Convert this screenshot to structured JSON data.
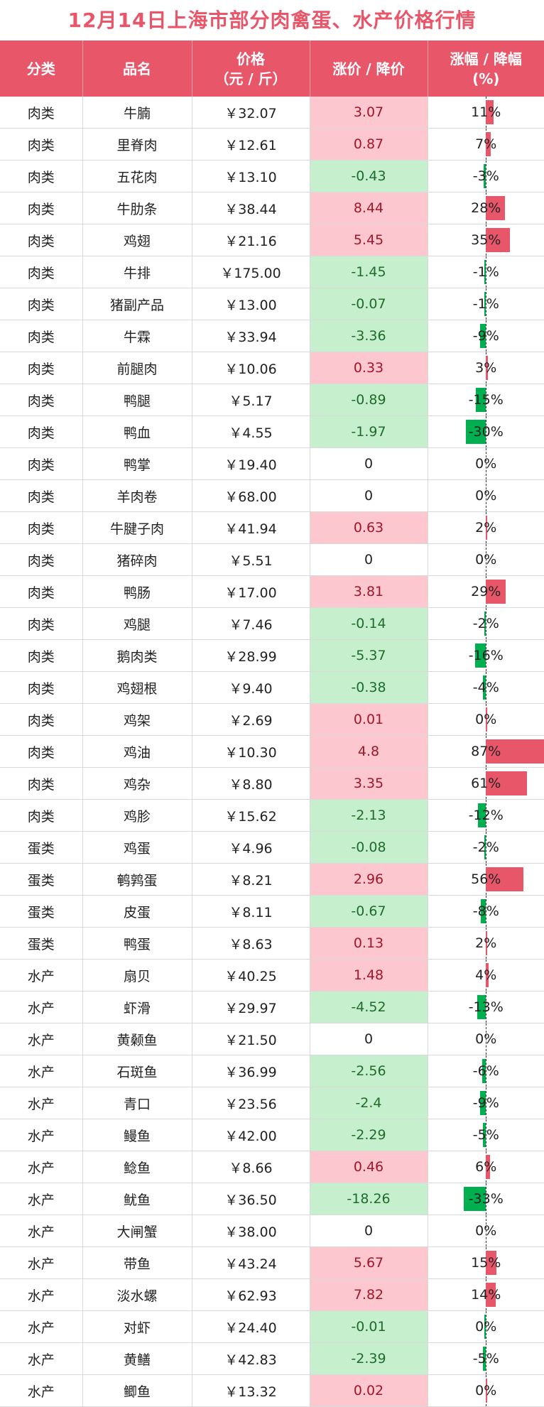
{
  "title": "12月14日上海市部分肉禽蛋、水产价格行情",
  "header": {
    "category": "分类",
    "name": "品名",
    "price_line1": "价格",
    "price_line2": "（元 / 斤）",
    "change": "涨价 / 降价",
    "pct_line1": "涨幅 / 降幅",
    "pct_line2": "(%)"
  },
  "colors": {
    "header_bg": "#e8566a",
    "rise_bg": "#fcc7ce",
    "fall_bg": "#c6efce",
    "rise_bar": "#e8566a",
    "fall_bar": "#00b050"
  },
  "rows": [
    {
      "category": "肉类",
      "name": "牛腩",
      "price": "￥32.07",
      "change": "3.07",
      "pct": "11%",
      "pct_value": 11
    },
    {
      "category": "肉类",
      "name": "里脊肉",
      "price": "￥12.61",
      "change": "0.87",
      "pct": "7%",
      "pct_value": 7
    },
    {
      "category": "肉类",
      "name": "五花肉",
      "price": "￥13.10",
      "change": "-0.43",
      "pct": "-3%",
      "pct_value": -3
    },
    {
      "category": "肉类",
      "name": "牛肋条",
      "price": "￥38.44",
      "change": "8.44",
      "pct": "28%",
      "pct_value": 28
    },
    {
      "category": "肉类",
      "name": "鸡翅",
      "price": "￥21.16",
      "change": "5.45",
      "pct": "35%",
      "pct_value": 35
    },
    {
      "category": "肉类",
      "name": "牛排",
      "price": "￥175.00",
      "change": "-1.45",
      "pct": "-1%",
      "pct_value": -1
    },
    {
      "category": "肉类",
      "name": "猪副产品",
      "price": "￥13.00",
      "change": "-0.07",
      "pct": "-1%",
      "pct_value": -1
    },
    {
      "category": "肉类",
      "name": "牛霖",
      "price": "￥33.94",
      "change": "-3.36",
      "pct": "-9%",
      "pct_value": -9
    },
    {
      "category": "肉类",
      "name": "前腿肉",
      "price": "￥10.06",
      "change": "0.33",
      "pct": "3%",
      "pct_value": 3
    },
    {
      "category": "肉类",
      "name": "鸭腿",
      "price": "￥5.17",
      "change": "-0.89",
      "pct": "-15%",
      "pct_value": -15
    },
    {
      "category": "肉类",
      "name": "鸭血",
      "price": "￥4.55",
      "change": "-1.97",
      "pct": "-30%",
      "pct_value": -30
    },
    {
      "category": "肉类",
      "name": "鸭掌",
      "price": "￥19.40",
      "change": "0",
      "pct": "0%",
      "pct_value": 0
    },
    {
      "category": "肉类",
      "name": "羊肉卷",
      "price": "￥68.00",
      "change": "0",
      "pct": "0%",
      "pct_value": 0
    },
    {
      "category": "肉类",
      "name": "牛腱子肉",
      "price": "￥41.94",
      "change": "0.63",
      "pct": "2%",
      "pct_value": 2
    },
    {
      "category": "肉类",
      "name": "猪碎肉",
      "price": "￥5.51",
      "change": "0",
      "pct": "0%",
      "pct_value": 0
    },
    {
      "category": "肉类",
      "name": "鸭肠",
      "price": "￥17.00",
      "change": "3.81",
      "pct": "29%",
      "pct_value": 29
    },
    {
      "category": "肉类",
      "name": "鸡腿",
      "price": "￥7.46",
      "change": "-0.14",
      "pct": "-2%",
      "pct_value": -2
    },
    {
      "category": "肉类",
      "name": "鹅肉类",
      "price": "￥28.99",
      "change": "-5.37",
      "pct": "-16%",
      "pct_value": -16
    },
    {
      "category": "肉类",
      "name": "鸡翅根",
      "price": "￥9.40",
      "change": "-0.38",
      "pct": "-4%",
      "pct_value": -4
    },
    {
      "category": "肉类",
      "name": "鸡架",
      "price": "￥2.69",
      "change": "0.01",
      "pct": "0%",
      "pct_value": 0.4
    },
    {
      "category": "肉类",
      "name": "鸡油",
      "price": "￥10.30",
      "change": "4.8",
      "pct": "87%",
      "pct_value": 87
    },
    {
      "category": "肉类",
      "name": "鸡杂",
      "price": "￥8.80",
      "change": "3.35",
      "pct": "61%",
      "pct_value": 61
    },
    {
      "category": "肉类",
      "name": "鸡胗",
      "price": "￥15.62",
      "change": "-2.13",
      "pct": "-12%",
      "pct_value": -12
    },
    {
      "category": "蛋类",
      "name": "鸡蛋",
      "price": "￥4.96",
      "change": "-0.08",
      "pct": "-2%",
      "pct_value": -2
    },
    {
      "category": "蛋类",
      "name": "鹌鹑蛋",
      "price": "￥8.21",
      "change": "2.96",
      "pct": "56%",
      "pct_value": 56
    },
    {
      "category": "蛋类",
      "name": "皮蛋",
      "price": "￥8.11",
      "change": "-0.67",
      "pct": "-8%",
      "pct_value": -8
    },
    {
      "category": "蛋类",
      "name": "鸭蛋",
      "price": "￥8.63",
      "change": "0.13",
      "pct": "2%",
      "pct_value": 2
    },
    {
      "category": "水产",
      "name": "扇贝",
      "price": "￥40.25",
      "change": "1.48",
      "pct": "4%",
      "pct_value": 4
    },
    {
      "category": "水产",
      "name": "虾滑",
      "price": "￥29.97",
      "change": "-4.52",
      "pct": "-13%",
      "pct_value": -13
    },
    {
      "category": "水产",
      "name": "黄颡鱼",
      "price": "￥21.50",
      "change": "0",
      "pct": "0%",
      "pct_value": 0
    },
    {
      "category": "水产",
      "name": "石斑鱼",
      "price": "￥36.99",
      "change": "-2.56",
      "pct": "-6%",
      "pct_value": -6
    },
    {
      "category": "水产",
      "name": "青口",
      "price": "￥23.56",
      "change": "-2.4",
      "pct": "-9%",
      "pct_value": -9
    },
    {
      "category": "水产",
      "name": "鳗鱼",
      "price": "￥42.00",
      "change": "-2.29",
      "pct": "-5%",
      "pct_value": -5
    },
    {
      "category": "水产",
      "name": "鲶鱼",
      "price": "￥8.66",
      "change": "0.46",
      "pct": "6%",
      "pct_value": 6
    },
    {
      "category": "水产",
      "name": "鱿鱼",
      "price": "￥36.50",
      "change": "-18.26",
      "pct": "-33%",
      "pct_value": -33
    },
    {
      "category": "水产",
      "name": "大闸蟹",
      "price": "￥38.00",
      "change": "0",
      "pct": "0%",
      "pct_value": 0
    },
    {
      "category": "水产",
      "name": "带鱼",
      "price": "￥43.24",
      "change": "5.67",
      "pct": "15%",
      "pct_value": 15
    },
    {
      "category": "水产",
      "name": "淡水螺",
      "price": "￥62.93",
      "change": "7.82",
      "pct": "14%",
      "pct_value": 14
    },
    {
      "category": "水产",
      "name": "对虾",
      "price": "￥24.40",
      "change": "-0.01",
      "pct": "0%",
      "pct_value": -0.4
    },
    {
      "category": "水产",
      "name": "黄鳝",
      "price": "￥42.83",
      "change": "-2.39",
      "pct": "-5%",
      "pct_value": -5
    },
    {
      "category": "水产",
      "name": "鲫鱼",
      "price": "￥13.32",
      "change": "0.02",
      "pct": "0%",
      "pct_value": 0.4
    }
  ]
}
